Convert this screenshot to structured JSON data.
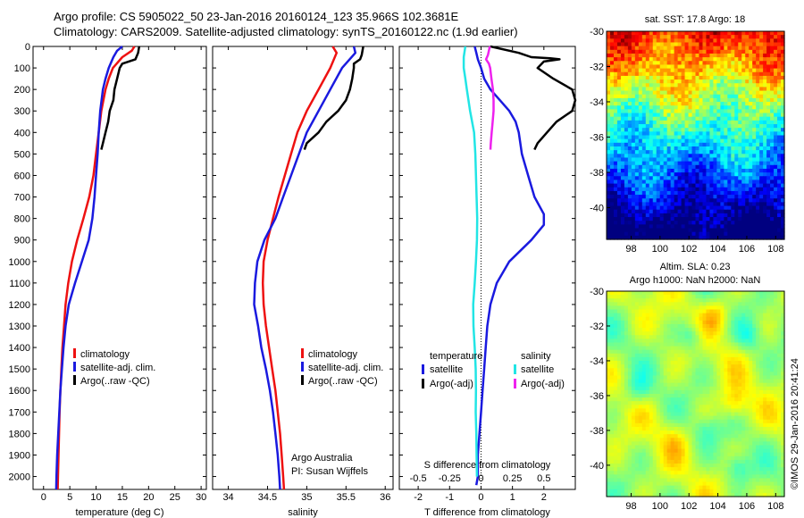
{
  "header": {
    "line1": "Argo profile: CS 5905022_50 23-Jan-2016 20160124_123 35.966S 102.3681E",
    "line2": "Climatology: CARS2009. Satellite-adjusted climatology: synTS_20160122.nc (1.9d earlier)"
  },
  "credit": "©IMOS 29-Jan-2016 20:41:24",
  "colors": {
    "climatology": "#ee1111",
    "satellite": "#1a1adf",
    "argo": "#000000",
    "sal_satellite": "#22e5e5",
    "sal_argo": "#ee22ee"
  },
  "chart_data": [
    {
      "type": "line",
      "id": "temperature",
      "xlabel": "temperature (deg C)",
      "ylabel": "",
      "xlim": [
        -2,
        31
      ],
      "ylim": [
        2060,
        0
      ],
      "xticks": [
        0,
        5,
        10,
        15,
        20,
        25,
        30
      ],
      "yticks": [
        0,
        100,
        200,
        300,
        400,
        500,
        600,
        700,
        800,
        900,
        1000,
        1100,
        1200,
        1300,
        1400,
        1500,
        1600,
        1700,
        1800,
        1900,
        2000
      ],
      "depth": [
        0,
        20,
        50,
        100,
        150,
        200,
        300,
        400,
        500,
        600,
        700,
        800,
        900,
        1000,
        1100,
        1200,
        1300,
        1400,
        1500,
        1600,
        1700,
        1800,
        1900,
        2000,
        2060
      ],
      "legend": [
        "climatology",
        "satellite-adj. clim.",
        "Argo(..raw -QC)"
      ],
      "series": [
        {
          "name": "climatology",
          "color": "#ee1111",
          "x": [
            17.3,
            16.8,
            15.0,
            13.2,
            12.4,
            11.8,
            11.0,
            10.5,
            10.0,
            9.5,
            8.7,
            7.6,
            6.4,
            5.4,
            4.7,
            4.2,
            3.9,
            3.6,
            3.4,
            3.2,
            3.05,
            2.95,
            2.85,
            2.75,
            2.7
          ]
        },
        {
          "name": "satellite-adj. clim.",
          "color": "#1a1adf",
          "x": [
            15.0,
            14.0,
            13.3,
            12.4,
            11.8,
            11.3,
            10.8,
            10.5,
            10.3,
            10.0,
            9.7,
            9.3,
            8.6,
            7.3,
            6.0,
            4.8,
            4.2,
            3.8,
            3.5,
            3.2,
            3.0,
            2.8,
            2.6,
            2.45,
            2.4
          ]
        },
        {
          "name": "Argo(..raw -QC)",
          "color": "#000000",
          "depth": [
            0,
            30,
            60,
            80,
            100,
            150,
            200,
            250,
            300,
            350,
            400,
            450,
            480
          ],
          "x": [
            18.2,
            18.0,
            17.5,
            15.0,
            14.5,
            14.0,
            13.5,
            13.3,
            12.6,
            12.3,
            11.8,
            11.3,
            11.0
          ]
        }
      ]
    },
    {
      "type": "line",
      "id": "salinity",
      "xlabel": "salinity",
      "ylabel": "",
      "xlim": [
        33.8,
        36.1
      ],
      "ylim": [
        2060,
        0
      ],
      "xticks": [
        34,
        34.5,
        35,
        35.5,
        36
      ],
      "yticks": [
        0,
        100,
        200,
        300,
        400,
        500,
        600,
        700,
        800,
        900,
        1000,
        1100,
        1200,
        1300,
        1400,
        1500,
        1600,
        1700,
        1800,
        1900,
        2000
      ],
      "depth": [
        0,
        30,
        100,
        200,
        300,
        400,
        500,
        600,
        700,
        800,
        900,
        1000,
        1100,
        1200,
        1300,
        1400,
        1500,
        1600,
        1700,
        1800,
        1900,
        2000,
        2060
      ],
      "legend": [
        "climatology",
        "satellite-adj. clim.",
        "Argo(..raw -QC)"
      ],
      "annotation": [
        "Argo Australia",
        "PI: Susan Wijffels"
      ],
      "series": [
        {
          "name": "climatology",
          "color": "#ee1111",
          "x": [
            35.33,
            35.38,
            35.3,
            35.15,
            35.0,
            34.88,
            34.8,
            34.72,
            34.64,
            34.57,
            34.5,
            34.45,
            34.44,
            34.45,
            34.48,
            34.52,
            34.56,
            34.6,
            34.63,
            34.66,
            34.68,
            34.7,
            34.71
          ]
        },
        {
          "name": "satellite-adj. clim.",
          "color": "#1a1adf",
          "x": [
            35.6,
            35.62,
            35.45,
            35.3,
            35.15,
            35.0,
            34.9,
            34.8,
            34.7,
            34.6,
            34.46,
            34.37,
            34.34,
            34.33,
            34.38,
            34.42,
            34.48,
            34.53,
            34.57,
            34.6,
            34.63,
            34.65,
            34.66
          ]
        },
        {
          "name": "Argo(..raw -QC)",
          "color": "#000000",
          "depth": [
            0,
            40,
            60,
            80,
            100,
            150,
            200,
            250,
            300,
            350,
            400,
            450,
            480
          ],
          "x": [
            35.72,
            35.7,
            35.68,
            35.6,
            35.6,
            35.58,
            35.55,
            35.5,
            35.4,
            35.25,
            35.15,
            35.0,
            34.97
          ]
        }
      ]
    },
    {
      "type": "line",
      "id": "difference",
      "xlabel": "T difference from climatology",
      "xlabel_top": "S difference from climatology",
      "xlim": [
        -2.6,
        3.0
      ],
      "ylim": [
        2060,
        0
      ],
      "xticks": [
        -2,
        -1,
        0,
        1,
        2
      ],
      "xticks_top": [
        -0.5,
        -0.25,
        0,
        0.25,
        0.5
      ],
      "yticks": [
        0,
        100,
        200,
        300,
        400,
        500,
        600,
        700,
        800,
        900,
        1000,
        1100,
        1200,
        1300,
        1400,
        1500,
        1600,
        1700,
        1800,
        1900,
        2000
      ],
      "legend_groups": [
        {
          "title": "temperature",
          "items": [
            "satellite",
            "Argo(-adj)"
          ]
        },
        {
          "title": "salinity",
          "items": [
            "satellite",
            "Argo(-adj)"
          ]
        }
      ],
      "series": [
        {
          "name": "temperature satellite",
          "color": "#1a1adf",
          "depth": [
            0,
            30,
            60,
            100,
            150,
            200,
            250,
            300,
            350,
            400,
            500,
            600,
            700,
            780,
            830,
            900,
            1000,
            1100,
            1200,
            1300,
            1400,
            1500,
            1600,
            1700,
            1800,
            1900,
            2000,
            2040
          ],
          "x": [
            -0.2,
            -0.15,
            -0.1,
            0,
            0.1,
            0.3,
            0.6,
            0.9,
            1.1,
            1.2,
            1.3,
            1.5,
            1.7,
            2.0,
            2.0,
            1.6,
            0.9,
            0.5,
            0.3,
            0.2,
            0.15,
            0.1,
            0.05,
            0,
            -0.05,
            -0.1,
            -0.1,
            -0.15
          ]
        },
        {
          "name": "temperature Argo(-adj)",
          "color": "#000000",
          "depth": [
            0,
            30,
            50,
            55,
            60,
            70,
            100,
            150,
            200,
            250,
            300,
            350,
            400,
            450,
            480
          ],
          "x": [
            0.3,
            1.2,
            1.6,
            2.2,
            2.5,
            2.0,
            1.8,
            2.3,
            2.9,
            3.0,
            2.9,
            2.4,
            2.1,
            1.8,
            1.7
          ]
        },
        {
          "name": "salinity satellite",
          "color": "#22e5e5",
          "depth": [
            0,
            50,
            100,
            150,
            200,
            300,
            400,
            500,
            600,
            700,
            800,
            900,
            1000,
            1100,
            1200,
            1300,
            1400,
            1500,
            1600,
            1700,
            1800,
            1900,
            2000
          ],
          "x": [
            -0.5,
            -0.55,
            -0.55,
            -0.5,
            -0.45,
            -0.35,
            -0.22,
            -0.18,
            -0.16,
            -0.14,
            -0.12,
            -0.13,
            -0.16,
            -0.2,
            -0.25,
            -0.24,
            -0.2,
            -0.17,
            -0.16,
            -0.17,
            -0.15,
            -0.14,
            -0.13
          ]
        },
        {
          "name": "salinity Argo(-adj)",
          "color": "#ee22ee",
          "depth": [
            0,
            40,
            60,
            80,
            100,
            150,
            200,
            250,
            300,
            350,
            400,
            450,
            480
          ],
          "x": [
            0.28,
            0.22,
            0.16,
            0.25,
            0.29,
            0.33,
            0.38,
            0.4,
            0.4,
            0.37,
            0.34,
            0.31,
            0.3
          ]
        }
      ]
    },
    {
      "type": "heatmap",
      "id": "sst-map",
      "title": "sat. SST: 17.8 Argo: 18",
      "xlim": [
        96.3,
        108.6
      ],
      "ylim": [
        -41.8,
        -30
      ],
      "xticks": [
        98,
        100,
        102,
        104,
        106,
        108
      ],
      "yticks": [
        -30,
        -32,
        -34,
        -36,
        -38,
        -40
      ]
    },
    {
      "type": "heatmap",
      "id": "sla-map",
      "title": [
        "Altim. SLA: 0.23",
        "Argo h1000: NaN h2000: NaN"
      ],
      "xlim": [
        96.3,
        108.6
      ],
      "ylim": [
        -41.8,
        -30
      ],
      "xticks": [
        98,
        100,
        102,
        104,
        106,
        108
      ],
      "yticks": [
        -30,
        -32,
        -34,
        -36,
        -38,
        -40
      ]
    }
  ]
}
